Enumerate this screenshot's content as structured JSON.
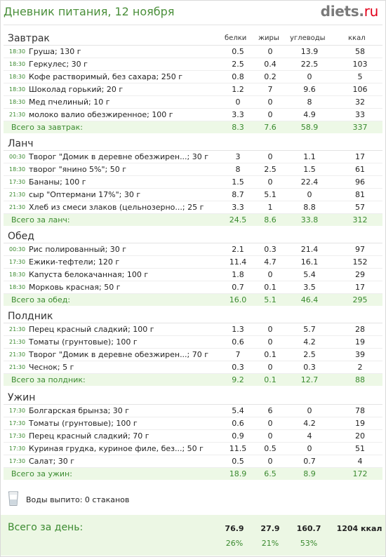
{
  "header": {
    "title": "Дневник питания, 12 ноября",
    "logo_main": "diets",
    "logo_dot": ".",
    "logo_tld": "ru"
  },
  "columns": {
    "protein": "белки",
    "fat": "жиры",
    "carbs": "углеводы",
    "kcal": "ккал"
  },
  "meals": [
    {
      "title": "Завтрак",
      "items": [
        {
          "time": "18:30",
          "name": "Груша; 130 г",
          "p": "0.5",
          "f": "0",
          "c": "13.9",
          "k": "58"
        },
        {
          "time": "18:30",
          "name": "Геркулес; 30 г",
          "p": "2.5",
          "f": "0.4",
          "c": "22.5",
          "k": "103"
        },
        {
          "time": "18:30",
          "name": "Кофе растворимый, без сахара; 250 г",
          "p": "0.8",
          "f": "0.2",
          "c": "0",
          "k": "5"
        },
        {
          "time": "18:30",
          "name": "Шоколад горький; 20 г",
          "p": "1.2",
          "f": "7",
          "c": "9.6",
          "k": "106"
        },
        {
          "time": "18:30",
          "name": "Мед пчелиный; 10 г",
          "p": "0",
          "f": "0",
          "c": "8",
          "k": "32"
        },
        {
          "time": "21:30",
          "name": "молоко валио обезжиренное; 100 г",
          "p": "3.3",
          "f": "0",
          "c": "4.9",
          "k": "33"
        }
      ],
      "total": {
        "label": "Всего за завтрак:",
        "p": "8.3",
        "f": "7.6",
        "c": "58.9",
        "k": "337"
      }
    },
    {
      "title": "Ланч",
      "items": [
        {
          "time": "00:30",
          "name": "Творог \"Домик в деревне обезжирен...; 30 г",
          "p": "3",
          "f": "0",
          "c": "1.1",
          "k": "17"
        },
        {
          "time": "18:30",
          "name": "творог \"янино 5%\"; 50 г",
          "p": "8",
          "f": "2.5",
          "c": "1.5",
          "k": "61"
        },
        {
          "time": "17:30",
          "name": "Бананы; 100 г",
          "p": "1.5",
          "f": "0",
          "c": "22.4",
          "k": "96"
        },
        {
          "time": "21:30",
          "name": "сыр \"Оптермани 17%\"; 30 г",
          "p": "8.7",
          "f": "5.1",
          "c": "0",
          "k": "81"
        },
        {
          "time": "21:30",
          "name": "Хлеб из смеси злаков (цельнозерно...; 25 г",
          "p": "3.3",
          "f": "1",
          "c": "8.8",
          "k": "57"
        }
      ],
      "total": {
        "label": "Всего за ланч:",
        "p": "24.5",
        "f": "8.6",
        "c": "33.8",
        "k": "312"
      }
    },
    {
      "title": "Обед",
      "items": [
        {
          "time": "00:30",
          "name": "Рис полированный; 30 г",
          "p": "2.1",
          "f": "0.3",
          "c": "21.4",
          "k": "97"
        },
        {
          "time": "17:30",
          "name": "Ежики-тефтели; 120 г",
          "p": "11.4",
          "f": "4.7",
          "c": "16.1",
          "k": "152"
        },
        {
          "time": "18:30",
          "name": "Капуста белокачанная; 100 г",
          "p": "1.8",
          "f": "0",
          "c": "5.4",
          "k": "29"
        },
        {
          "time": "18:30",
          "name": "Морковь красная; 50 г",
          "p": "0.7",
          "f": "0.1",
          "c": "3.5",
          "k": "17"
        }
      ],
      "total": {
        "label": "Всего за обед:",
        "p": "16.0",
        "f": "5.1",
        "c": "46.4",
        "k": "295"
      }
    },
    {
      "title": "Полдник",
      "items": [
        {
          "time": "21:30",
          "name": "Перец красный сладкий; 100 г",
          "p": "1.3",
          "f": "0",
          "c": "5.7",
          "k": "28"
        },
        {
          "time": "21:30",
          "name": "Томаты (грунтовые); 100 г",
          "p": "0.6",
          "f": "0",
          "c": "4.2",
          "k": "19"
        },
        {
          "time": "21:30",
          "name": "Творог \"Домик в деревне обезжирен...; 70 г",
          "p": "7",
          "f": "0.1",
          "c": "2.5",
          "k": "39"
        },
        {
          "time": "21:30",
          "name": "Чеснок; 5 г",
          "p": "0.3",
          "f": "0",
          "c": "0.3",
          "k": "2"
        }
      ],
      "total": {
        "label": "Всего за полдник:",
        "p": "9.2",
        "f": "0.1",
        "c": "12.7",
        "k": "88"
      }
    },
    {
      "title": "Ужин",
      "items": [
        {
          "time": "17:30",
          "name": "Болгарская брынза; 30 г",
          "p": "5.4",
          "f": "6",
          "c": "0",
          "k": "78"
        },
        {
          "time": "17:30",
          "name": "Томаты (грунтовые); 100 г",
          "p": "0.6",
          "f": "0",
          "c": "4.2",
          "k": "19"
        },
        {
          "time": "17:30",
          "name": "Перец красный сладкий; 70 г",
          "p": "0.9",
          "f": "0",
          "c": "4",
          "k": "20"
        },
        {
          "time": "17:30",
          "name": "Куриная грудка, куриное филе, без...; 50 г",
          "p": "11.5",
          "f": "0.5",
          "c": "0",
          "k": "51"
        },
        {
          "time": "17:30",
          "name": "Салат; 30 г",
          "p": "0.5",
          "f": "0",
          "c": "0.7",
          "k": "4"
        }
      ],
      "total": {
        "label": "Всего за ужин:",
        "p": "18.9",
        "f": "6.5",
        "c": "8.9",
        "k": "172"
      }
    }
  ],
  "water": {
    "icon": "water-glass-icon",
    "text": "Воды выпито: 0 стаканов"
  },
  "day_total": {
    "label": "Всего за день:",
    "p": "76.9",
    "f": "27.9",
    "c": "160.7",
    "k": "1204 ккал",
    "p_pct": "26%",
    "f_pct": "21%",
    "c_pct": "53%"
  },
  "colors": {
    "accent_green": "#3a8a2f",
    "total_bg": "#edf8e6",
    "logo_red": "#e2001a"
  }
}
